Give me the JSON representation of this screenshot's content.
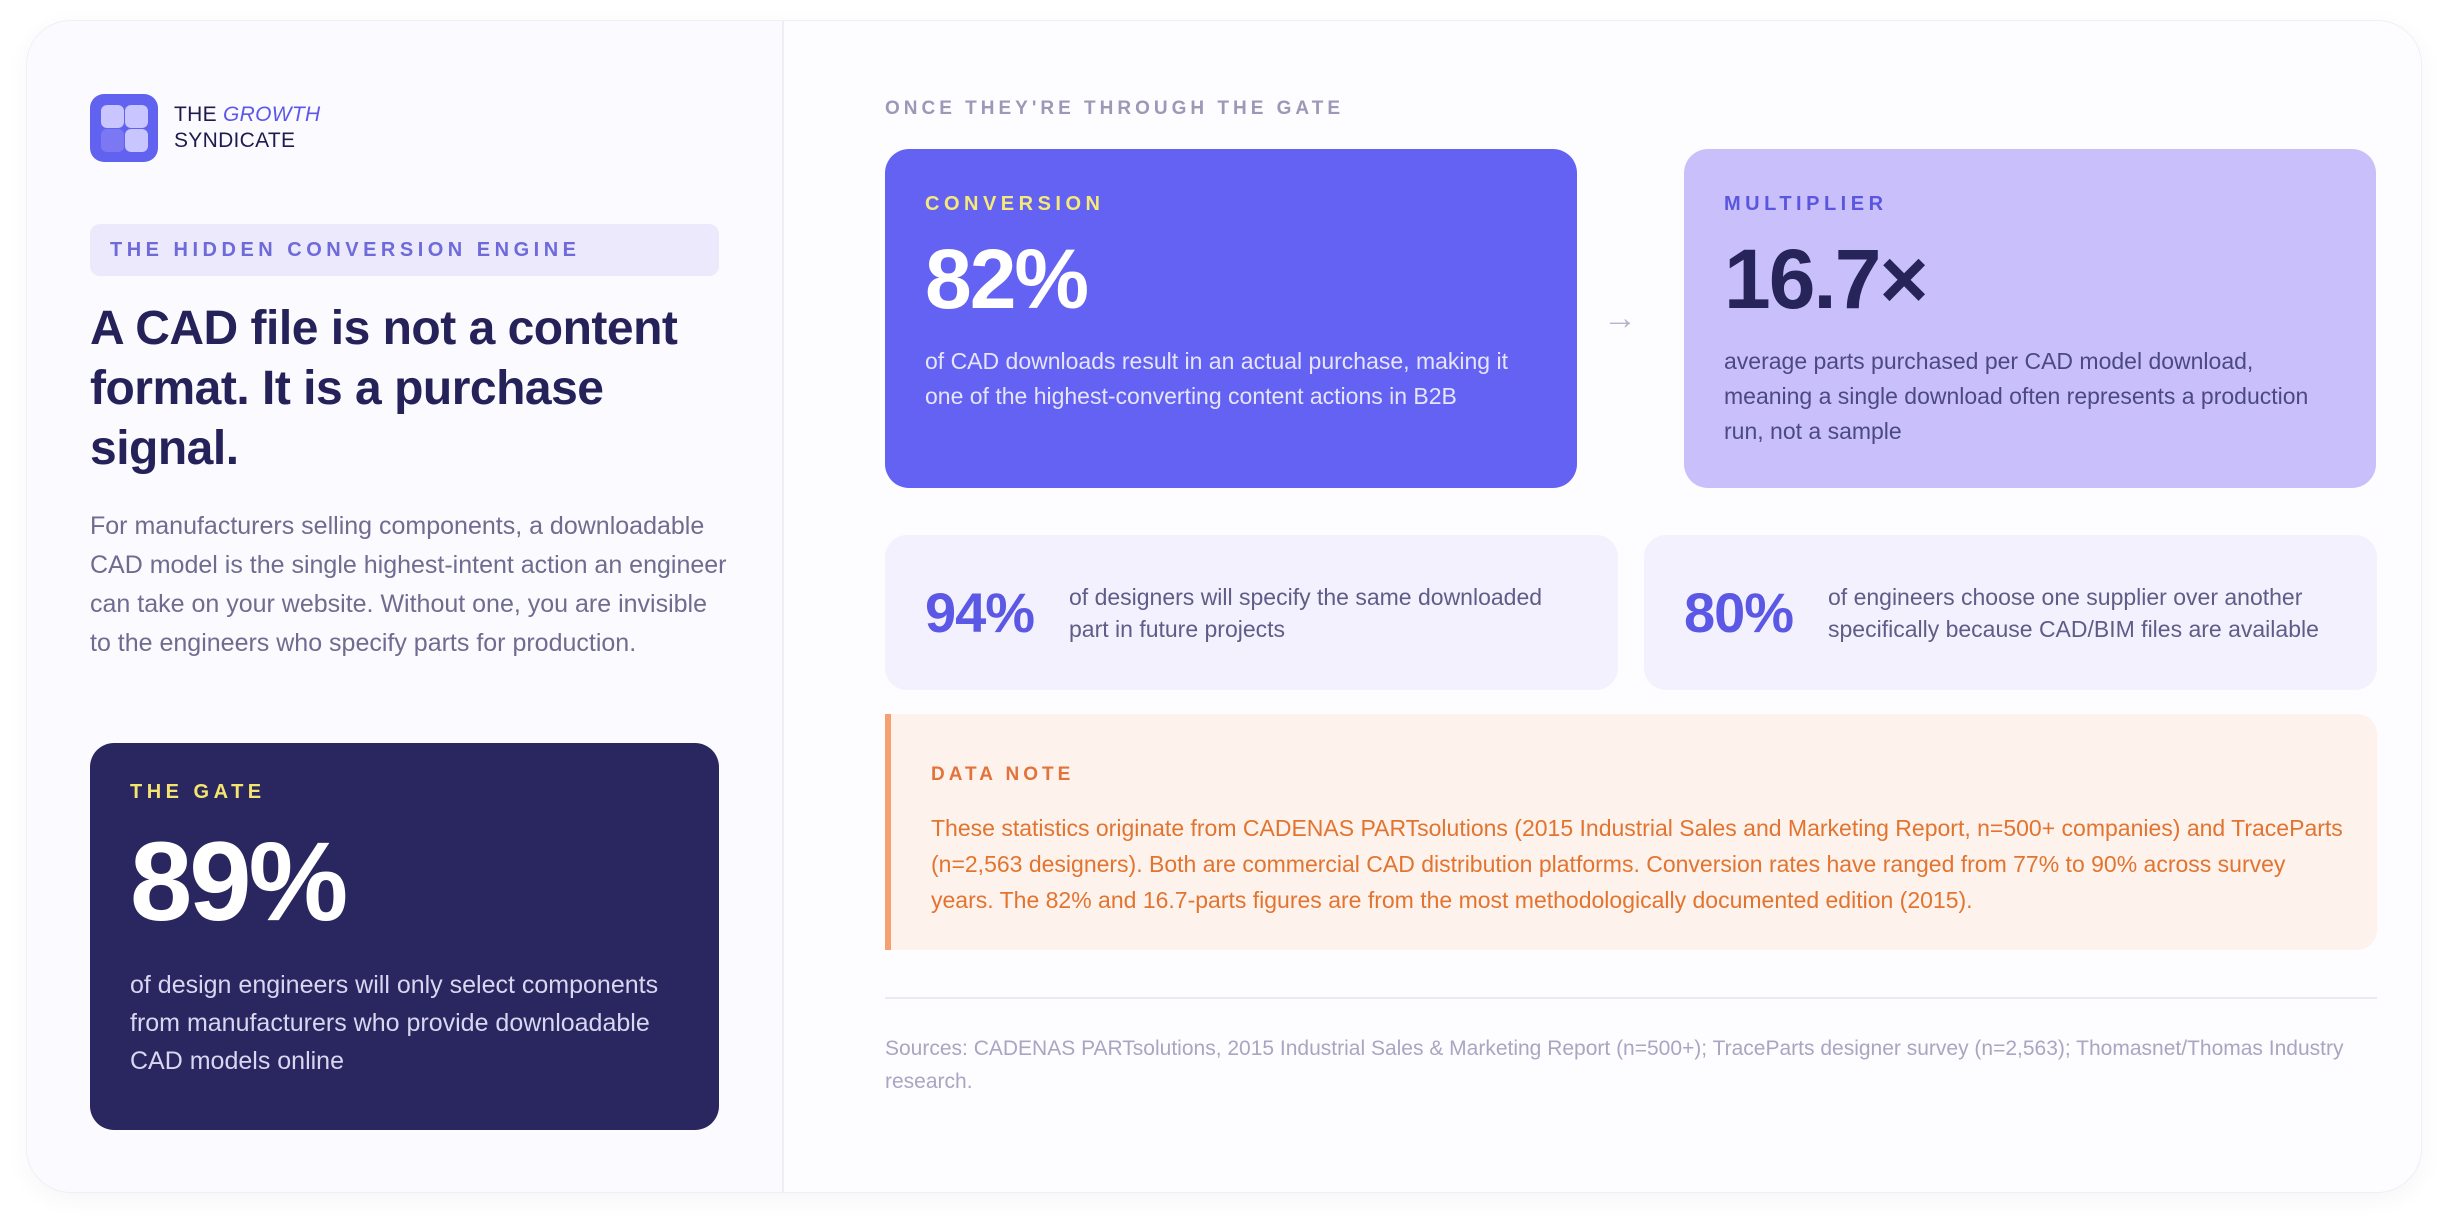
{
  "brand": {
    "line1_prefix": "THE",
    "line1_accent": "GROWTH",
    "line2": "SYNDICATE"
  },
  "left": {
    "eyebrow": "THE HIDDEN CONVERSION ENGINE",
    "headline": "A CAD file is not a content format. It is a purchase signal.",
    "lede": "For manufacturers selling components, a downloadable CAD model is the single highest-intent action an engineer can take on your website. Without one, you are invisible to the engineers who specify parts for production.",
    "gate": {
      "label": "THE GATE",
      "value": "89%",
      "description": "of design engineers will only select components from manufacturers who provide downloadable CAD models online"
    }
  },
  "right": {
    "eyebrow": "ONCE THEY'RE THROUGH THE GATE",
    "conversion": {
      "label": "CONVERSION",
      "value": "82%",
      "description": "of CAD downloads result in an actual purchase, making it one of the highest-converting content actions in B2B"
    },
    "arrow": "→",
    "multiplier": {
      "label": "MULTIPLIER",
      "value": "16.7×",
      "description": "average parts purchased per CAD model download, meaning a single download often represents a production run, not a sample"
    },
    "stats": [
      {
        "value": "94%",
        "text": "of designers will specify the same downloaded part in future projects"
      },
      {
        "value": "80%",
        "text": "of engineers choose one supplier over another specifically because CAD/BIM files are available"
      }
    ],
    "note": {
      "label": "DATA NOTE",
      "text": "These statistics originate from CADENAS PARTsolutions (2015 Industrial Sales and Marketing Report, n=500+ companies) and TraceParts (n=2,563 designers). Both are commercial CAD distribution platforms. Conversion rates have ranged from 77% to 90% across survey years. The 82% and 16.7-parts figures are from the most methodologically documented edition (2015)."
    },
    "sources": "Sources: CADENAS PARTsolutions, 2015 Industrial Sales & Marketing Report (n=500+); TraceParts designer survey (n=2,563); Thomasnet/Thomas Industry research."
  },
  "colors": {
    "primary": "#6462f3",
    "lavender": "#c9c0fb",
    "navy": "#2a2760",
    "yellow": "#f5e978",
    "note_orange": "#e3742f"
  },
  "icons": {
    "logo": "four-square-grid-icon",
    "arrow": "arrow-right-icon"
  }
}
